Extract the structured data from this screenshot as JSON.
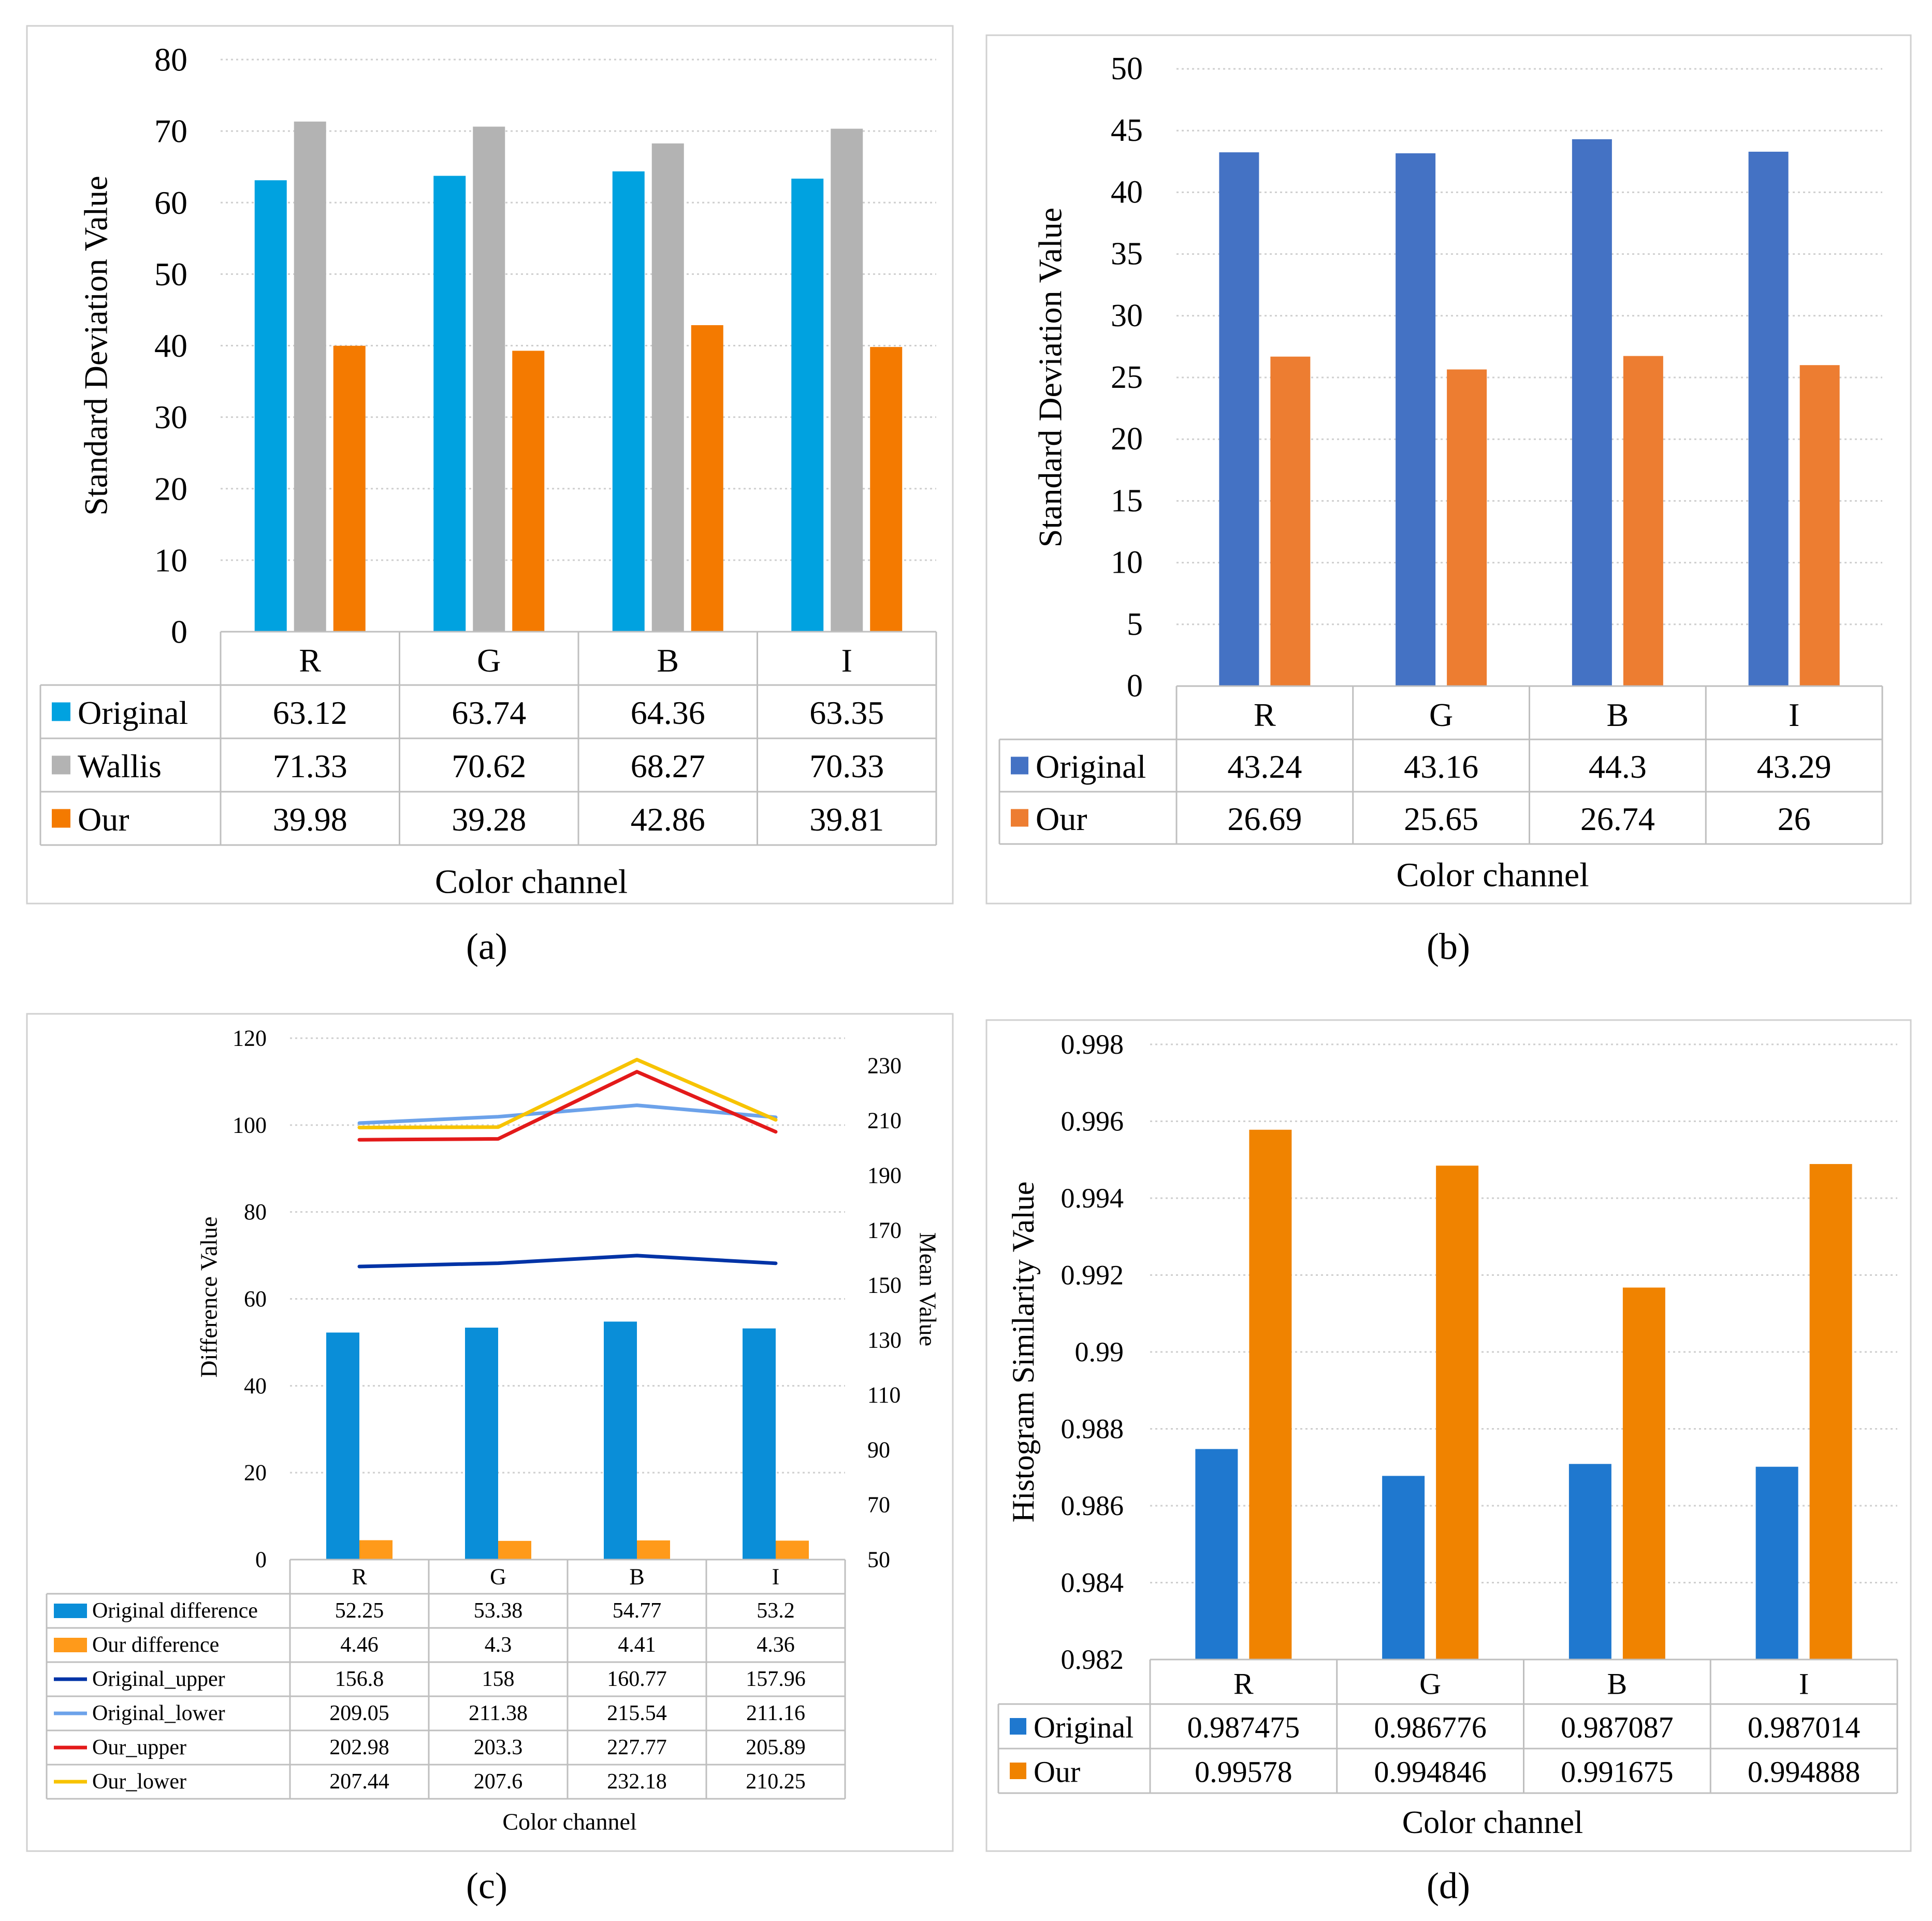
{
  "colors": {
    "a_original": "#00A2E0",
    "a_wallis": "#B3B3B3",
    "a_our": "#F47A00",
    "b_original": "#4472C4",
    "b_our": "#ED7D31",
    "c_orig_diff": "#0A8ED8",
    "c_our_diff": "#FF9A1A",
    "c_original_upper": "#0033A6",
    "c_original_lower": "#6CA2EA",
    "c_our_upper": "#E31A1A",
    "c_our_lower": "#F7C300",
    "d_original": "#1F78CF",
    "d_our": "#F08300",
    "grid": "#CFCFCF",
    "border": "#D0D0D0",
    "table_line": "#BFBFBF",
    "text": "#000000"
  },
  "chart_data": [
    {
      "panel": "(a)",
      "type": "bar",
      "title": "",
      "ylabel": "Standard Deviation Value",
      "xlabel": "Color channel",
      "ylim": [
        0,
        80
      ],
      "yticks": [
        "0",
        "10",
        "20",
        "30",
        "40",
        "50",
        "60",
        "70",
        "80"
      ],
      "categories": [
        "R",
        "G",
        "B",
        "I"
      ],
      "series": [
        {
          "name": "Original",
          "values": [
            63.12,
            63.74,
            64.36,
            63.35
          ],
          "labels": [
            "63.12",
            "63.74",
            "64.36",
            "63.35"
          ]
        },
        {
          "name": "Wallis",
          "values": [
            71.33,
            70.62,
            68.27,
            70.33
          ],
          "labels": [
            "71.33",
            "70.62",
            "68.27",
            "70.33"
          ]
        },
        {
          "name": "Our",
          "values": [
            39.98,
            39.28,
            42.86,
            39.81
          ],
          "labels": [
            "39.98",
            "39.28",
            "42.86",
            "39.81"
          ]
        }
      ]
    },
    {
      "panel": "(b)",
      "type": "bar",
      "title": "",
      "ylabel": "Standard Deviation Value",
      "xlabel": "Color channel",
      "ylim": [
        0,
        50
      ],
      "yticks": [
        "0",
        "5",
        "10",
        "15",
        "20",
        "25",
        "30",
        "35",
        "40",
        "45",
        "50"
      ],
      "categories": [
        "R",
        "G",
        "B",
        "I"
      ],
      "series": [
        {
          "name": "Original",
          "values": [
            43.24,
            43.16,
            44.3,
            43.29
          ],
          "labels": [
            "43.24",
            "43.16",
            "44.3",
            "43.29"
          ]
        },
        {
          "name": "Our",
          "values": [
            26.69,
            25.65,
            26.74,
            26
          ],
          "labels": [
            "26.69",
            "25.65",
            "26.74",
            "26"
          ]
        }
      ]
    },
    {
      "panel": "(c)",
      "type": "bar",
      "title": "",
      "ylabel": "Difference Value",
      "y2label": "Mean Value",
      "xlabel": "Color channel",
      "ylim": [
        0,
        120
      ],
      "y2lim": [
        50,
        240
      ],
      "yticks": [
        "0",
        "20",
        "40",
        "60",
        "80",
        "100",
        "120"
      ],
      "y2ticks": [
        "50",
        "70",
        "90",
        "110",
        "130",
        "150",
        "170",
        "190",
        "210",
        "230"
      ],
      "categories": [
        "R",
        "G",
        "B",
        "I"
      ],
      "series": [
        {
          "name": "Original difference",
          "kind": "bar",
          "axis": "left",
          "values": [
            52.25,
            53.38,
            54.77,
            53.2
          ],
          "labels": [
            "52.25",
            "53.38",
            "54.77",
            "53.2"
          ]
        },
        {
          "name": "Our difference",
          "kind": "bar",
          "axis": "left",
          "values": [
            4.46,
            4.3,
            4.41,
            4.36
          ],
          "labels": [
            "4.46",
            "4.3",
            "4.41",
            "4.36"
          ]
        },
        {
          "name": "Original_upper",
          "kind": "line",
          "axis": "right",
          "values": [
            156.8,
            158,
            160.77,
            157.96
          ],
          "labels": [
            "156.8",
            "158",
            "160.77",
            "157.96"
          ]
        },
        {
          "name": "Original_lower",
          "kind": "line",
          "axis": "right",
          "values": [
            209.05,
            211.38,
            215.54,
            211.16
          ],
          "labels": [
            "209.05",
            "211.38",
            "215.54",
            "211.16"
          ]
        },
        {
          "name": "Our_upper",
          "kind": "line",
          "axis": "right",
          "values": [
            202.98,
            203.3,
            227.77,
            205.89
          ],
          "labels": [
            "202.98",
            "203.3",
            "227.77",
            "205.89"
          ]
        },
        {
          "name": "Our_lower",
          "kind": "line",
          "axis": "right",
          "values": [
            207.44,
            207.6,
            232.18,
            210.25
          ],
          "labels": [
            "207.44",
            "207.6",
            "232.18",
            "210.25"
          ]
        }
      ]
    },
    {
      "panel": "(d)",
      "type": "bar",
      "title": "",
      "ylabel": "Histogram Similarity Value",
      "xlabel": "Color channel",
      "ylim": [
        0.982,
        0.998
      ],
      "yticks": [
        "0.982",
        "0.984",
        "0.986",
        "0.988",
        "0.99",
        "0.992",
        "0.994",
        "0.996",
        "0.998"
      ],
      "categories": [
        "R",
        "G",
        "B",
        "I"
      ],
      "series": [
        {
          "name": "Original",
          "values": [
            0.987475,
            0.986776,
            0.987087,
            0.987014
          ],
          "labels": [
            "0.987475",
            "0.986776",
            "0.987087",
            "0.987014"
          ]
        },
        {
          "name": "Our",
          "values": [
            0.99578,
            0.994846,
            0.991675,
            0.994888
          ],
          "labels": [
            "0.99578",
            "0.994846",
            "0.991675",
            "0.994888"
          ]
        }
      ]
    }
  ]
}
